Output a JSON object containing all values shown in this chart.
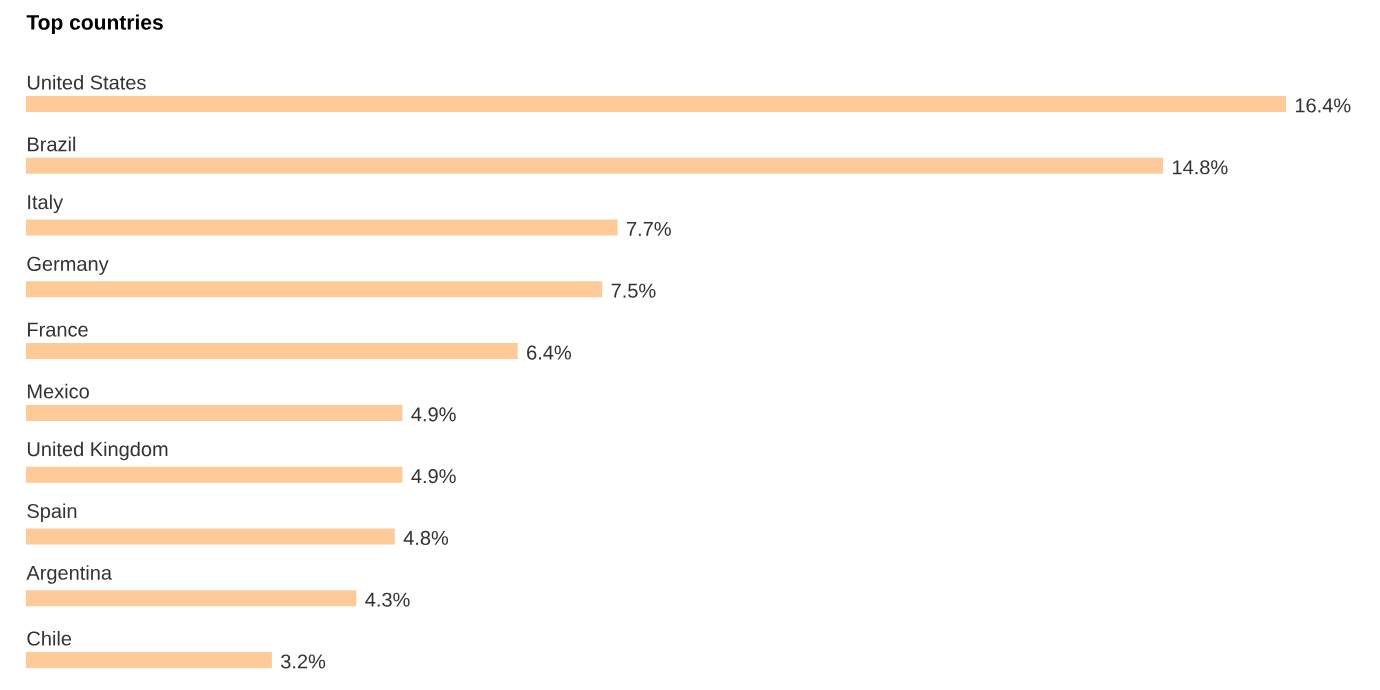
{
  "chart_data": {
    "type": "bar",
    "orientation": "horizontal",
    "title": "Top countries",
    "categories": [
      "United States",
      "Brazil",
      "Italy",
      "Germany",
      "France",
      "Mexico",
      "United Kingdom",
      "Spain",
      "Argentina",
      "Chile"
    ],
    "values": [
      16.4,
      14.8,
      7.7,
      7.5,
      6.4,
      4.9,
      4.9,
      4.8,
      4.3,
      3.2
    ],
    "value_labels": [
      "16.4%",
      "14.8%",
      "7.7%",
      "7.5%",
      "6.4%",
      "4.9%",
      "4.9%",
      "4.8%",
      "4.3%",
      "3.2%"
    ],
    "color": "#fdca98"
  }
}
